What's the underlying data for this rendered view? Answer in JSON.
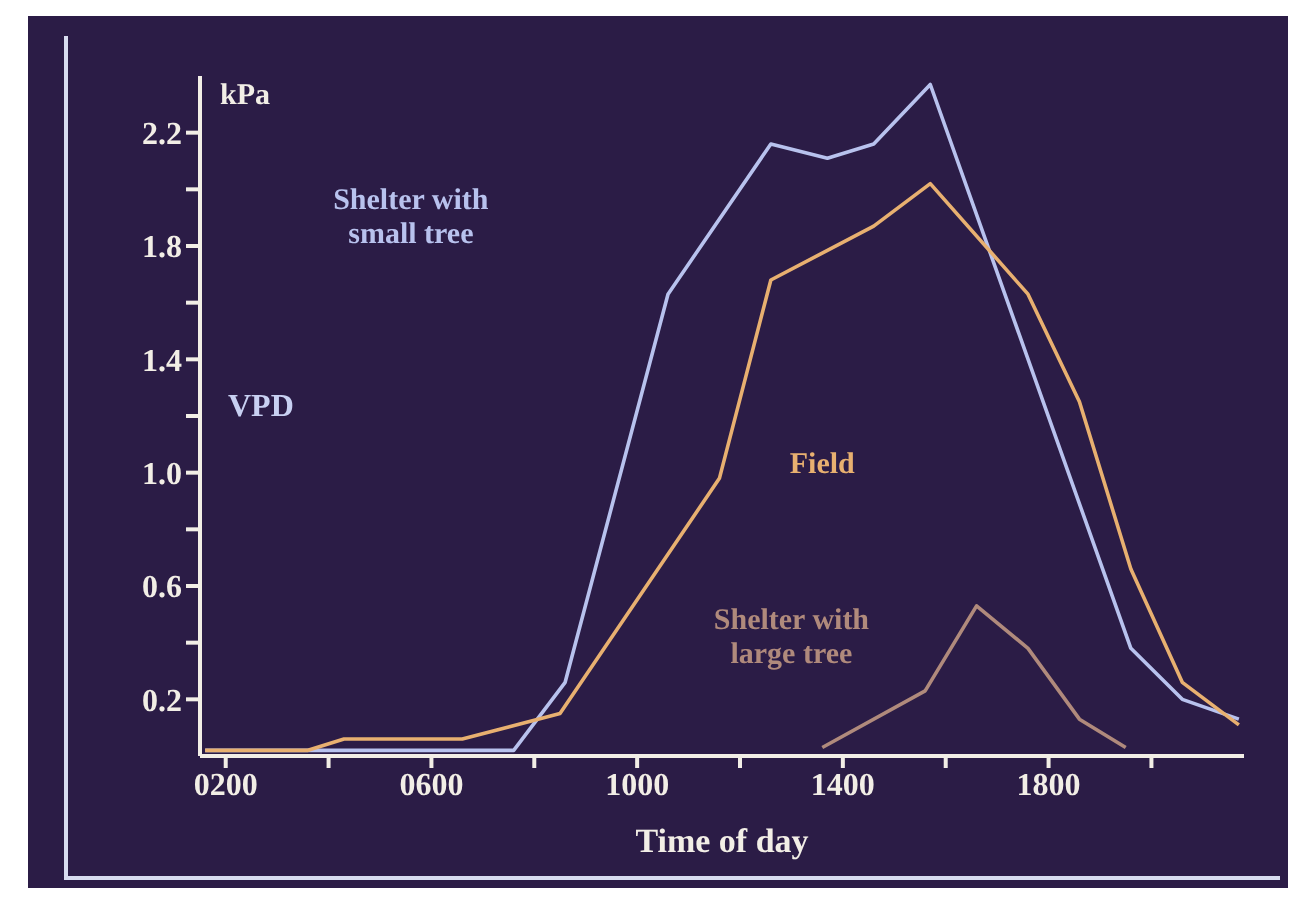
{
  "chart_data": {
    "type": "line",
    "xlabel": "Time of day",
    "ylabel": "VPD",
    "annotations": [
      "kPa"
    ],
    "xlim": [
      150,
      2180
    ],
    "xticks": [
      {
        "value": 200,
        "label": "0200"
      },
      {
        "value": 400,
        "label": null
      },
      {
        "value": 600,
        "label": "0600"
      },
      {
        "value": 800,
        "label": null
      },
      {
        "value": 1000,
        "label": "1000"
      },
      {
        "value": 1200,
        "label": null
      },
      {
        "value": 1400,
        "label": "1400"
      },
      {
        "value": 1600,
        "label": null
      },
      {
        "value": 1800,
        "label": "1800"
      },
      {
        "value": 2000,
        "label": null
      }
    ],
    "ylim": [
      0,
      2.4
    ],
    "yticks": [
      0.2,
      {
        "value": 0.4,
        "label": null
      },
      0.6,
      {
        "value": 0.8,
        "label": null
      },
      {
        "value": 1.0,
        "label": "1.0"
      },
      {
        "value": 1.2,
        "label": null
      },
      1.4,
      {
        "value": 1.6,
        "label": null
      },
      1.8,
      {
        "value": 2.0,
        "label": null
      },
      2.2
    ],
    "marker": "none",
    "line_style": "solid",
    "series": [
      {
        "name": "Shelter with small tree",
        "color": "#b8c2ee",
        "x": [
          160,
          760,
          860,
          1060,
          1260,
          1370,
          1460,
          1570,
          1960,
          2060,
          2170
        ],
        "values": [
          0.02,
          0.02,
          0.26,
          1.63,
          2.16,
          2.11,
          2.16,
          2.37,
          0.38,
          0.2,
          0.13
        ]
      },
      {
        "name": "Field",
        "color": "#e8b070",
        "x": [
          160,
          360,
          430,
          660,
          850,
          1160,
          1260,
          1460,
          1570,
          1760,
          1860,
          1960,
          2060,
          2170
        ],
        "values": [
          0.02,
          0.02,
          0.06,
          0.06,
          0.15,
          0.98,
          1.68,
          1.87,
          2.02,
          1.63,
          1.25,
          0.66,
          0.26,
          0.11
        ]
      },
      {
        "name": "Shelter with large tree",
        "color": "#b08a7c",
        "x": [
          1360,
          1560,
          1660,
          1760,
          1860,
          1950
        ],
        "values": [
          0.03,
          0.23,
          0.53,
          0.38,
          0.13,
          0.03
        ]
      }
    ]
  }
}
